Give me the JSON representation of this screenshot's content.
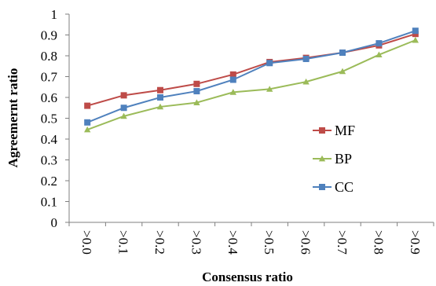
{
  "chart_data": {
    "type": "line",
    "title": "",
    "xlabel": "Consensus ratio",
    "ylabel": "Agreemernt ratio",
    "categories": [
      ">0.0",
      ">0.1",
      ">0.2",
      ">0.3",
      ">0.4",
      ">0.5",
      ">0.6",
      ">0.7",
      ">0.8",
      ">0.9"
    ],
    "ylim": [
      0,
      1
    ],
    "yticks": [
      "0",
      "0.1",
      "0.2",
      "0.3",
      "0.4",
      "0.5",
      "0.6",
      "0.7",
      "0.8",
      "0.9",
      "1"
    ],
    "grid": false,
    "legend_position": "right",
    "series": [
      {
        "name": "MF",
        "color": "#be4b48",
        "marker": "square",
        "values": [
          0.56,
          0.61,
          0.635,
          0.665,
          0.71,
          0.77,
          0.79,
          0.815,
          0.85,
          0.905
        ]
      },
      {
        "name": "BP",
        "color": "#9bbb59",
        "marker": "triangle",
        "values": [
          0.445,
          0.51,
          0.555,
          0.575,
          0.625,
          0.64,
          0.675,
          0.725,
          0.805,
          0.875
        ]
      },
      {
        "name": "CC",
        "color": "#4f81bd",
        "marker": "square",
        "values": [
          0.48,
          0.55,
          0.6,
          0.63,
          0.685,
          0.765,
          0.785,
          0.815,
          0.86,
          0.92
        ]
      }
    ]
  }
}
